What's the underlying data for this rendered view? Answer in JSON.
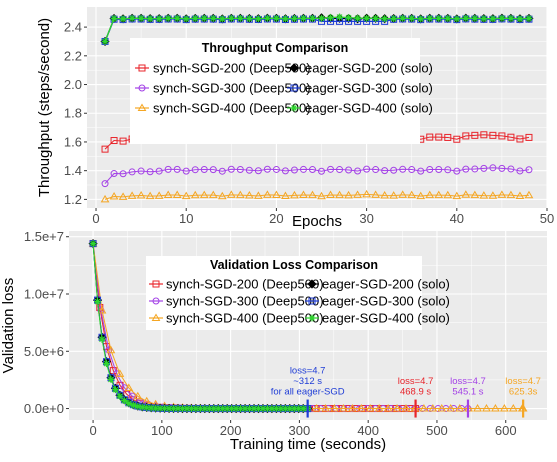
{
  "colors": {
    "synch200": "#e8242b",
    "synch300": "#a341e6",
    "synch400": "#f5a623",
    "eager200": "#000000",
    "eager300": "#1f3dd6",
    "eager400": "#2ed62e",
    "panel": "#ebebeb",
    "grid": "#ffffff"
  },
  "chart_data": [
    {
      "type": "line",
      "title": "Throughput Comparison",
      "xlabel": "Epochs",
      "ylabel": "Throughput (steps/second)",
      "xlim": [
        -1,
        50
      ],
      "ylim": [
        1.14,
        2.54
      ],
      "xticks": [
        "0",
        "10",
        "20",
        "30",
        "40",
        "50"
      ],
      "yticks": [
        "1.2",
        "1.4",
        "1.6",
        "1.8",
        "2.0",
        "2.2",
        "2.4"
      ],
      "grid": true,
      "legend_position": "center",
      "legend_columns": 2,
      "series": [
        {
          "name": "synch-SGD-200 (Deep500)",
          "key": "synch200",
          "marker": "square",
          "base": 1.63,
          "start": 1.55,
          "ramp": 1.61,
          "amp": 0.008,
          "peak": 1.65,
          "peak_at": 43
        },
        {
          "name": "synch-SGD-300 (Deep500)",
          "key": "synch300",
          "marker": "circle",
          "base": 1.405,
          "start": 1.31,
          "ramp": 1.38,
          "amp": 0.006,
          "peak": 1.42,
          "peak_at": 44
        },
        {
          "name": "synch-SGD-400 (Deep500)",
          "key": "synch400",
          "marker": "triangle",
          "base": 1.228,
          "start": 1.2,
          "ramp": 1.22,
          "amp": 0.004,
          "peak": 1.235,
          "peak_at": 30
        },
        {
          "name": "eager-SGD-200 (solo)",
          "key": "eager200",
          "marker": "diamond",
          "base": 2.46,
          "start": 2.3,
          "ramp": 2.46,
          "amp": 0.002,
          "peak": 2.465,
          "peak_at": 25
        },
        {
          "name": "eager-SGD-300 (solo)",
          "key": "eager300",
          "marker": "square",
          "base": 2.455,
          "start": 2.3,
          "ramp": 2.455,
          "amp": 0.002,
          "dip": 2.44,
          "dip_range": [
            25,
            32
          ]
        },
        {
          "name": "eager-SGD-400 (solo)",
          "key": "eager400",
          "marker": "cross",
          "base": 2.46,
          "start": 2.3,
          "ramp": 2.46,
          "amp": 0.002,
          "peak": 2.47,
          "peak_at": 27
        }
      ],
      "x_range": [
        1,
        48
      ]
    },
    {
      "type": "line",
      "title": "Validation Loss Comparison",
      "xlabel": "Training time (seconds)",
      "ylabel": "Validation loss",
      "xlim": [
        -35,
        660
      ],
      "ylim": [
        -1000000,
        15500000
      ],
      "xticks": [
        "0",
        "100",
        "200",
        "300",
        "400",
        "500",
        "600"
      ],
      "yticks": [
        "0.0e+0",
        "5.0e+6",
        "1.0e+7",
        "1.5e+7"
      ],
      "grid": true,
      "legend_position": "top-right",
      "legend_columns": 2,
      "series": [
        {
          "name": "synch-SGD-200 (Deep500)",
          "key": "synch200",
          "marker": "square",
          "initial": 14400000,
          "decay": 20,
          "end_time": 468.9,
          "step": 9.8
        },
        {
          "name": "synch-SGD-300 (Deep500)",
          "key": "synch300",
          "marker": "circle",
          "initial": 14400000,
          "decay": 22,
          "end_time": 545.1,
          "step": 11.4
        },
        {
          "name": "synch-SGD-400 (Deep500)",
          "key": "synch400",
          "marker": "triangle",
          "initial": 14400000,
          "decay": 25,
          "end_time": 625.3,
          "step": 13.0
        },
        {
          "name": "eager-SGD-200 (solo)",
          "key": "eager200",
          "marker": "diamond",
          "initial": 14400000,
          "decay": 15.5,
          "end_time": 312,
          "step": 6.5
        },
        {
          "name": "eager-SGD-300 (solo)",
          "key": "eager300",
          "marker": "square",
          "initial": 14400000,
          "decay": 15.5,
          "end_time": 312,
          "step": 6.5
        },
        {
          "name": "eager-SGD-400 (solo)",
          "key": "eager400",
          "marker": "cross",
          "initial": 14400000,
          "decay": 15,
          "end_time": 312,
          "step": 6.5
        }
      ],
      "annotations": [
        {
          "key": "eager300",
          "x": 312,
          "lines": [
            "loss=4.7",
            "~312 s",
            "for all eager-SGD"
          ]
        },
        {
          "key": "synch200",
          "x": 468.9,
          "lines": [
            "loss=4.7",
            "468.9 s"
          ]
        },
        {
          "key": "synch300",
          "x": 545.1,
          "lines": [
            "loss=4.7",
            "545.1 s"
          ]
        },
        {
          "key": "synch400",
          "x": 625.3,
          "lines": [
            "loss=4.7",
            "625.3s"
          ]
        }
      ]
    }
  ]
}
